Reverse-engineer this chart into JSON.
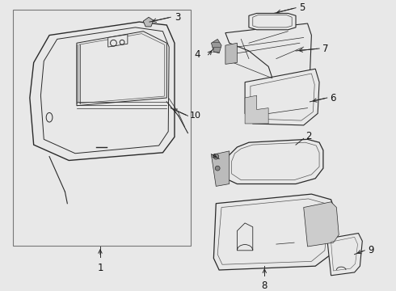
{
  "bg_color": "#e8e8e8",
  "box_bg": "#e8e8e8",
  "line_color": "#2a2a2a",
  "label_color": "#111111",
  "white": "#ffffff",
  "parts": [
    "1",
    "2",
    "3",
    "4",
    "5",
    "6",
    "7",
    "8",
    "9",
    "10"
  ]
}
